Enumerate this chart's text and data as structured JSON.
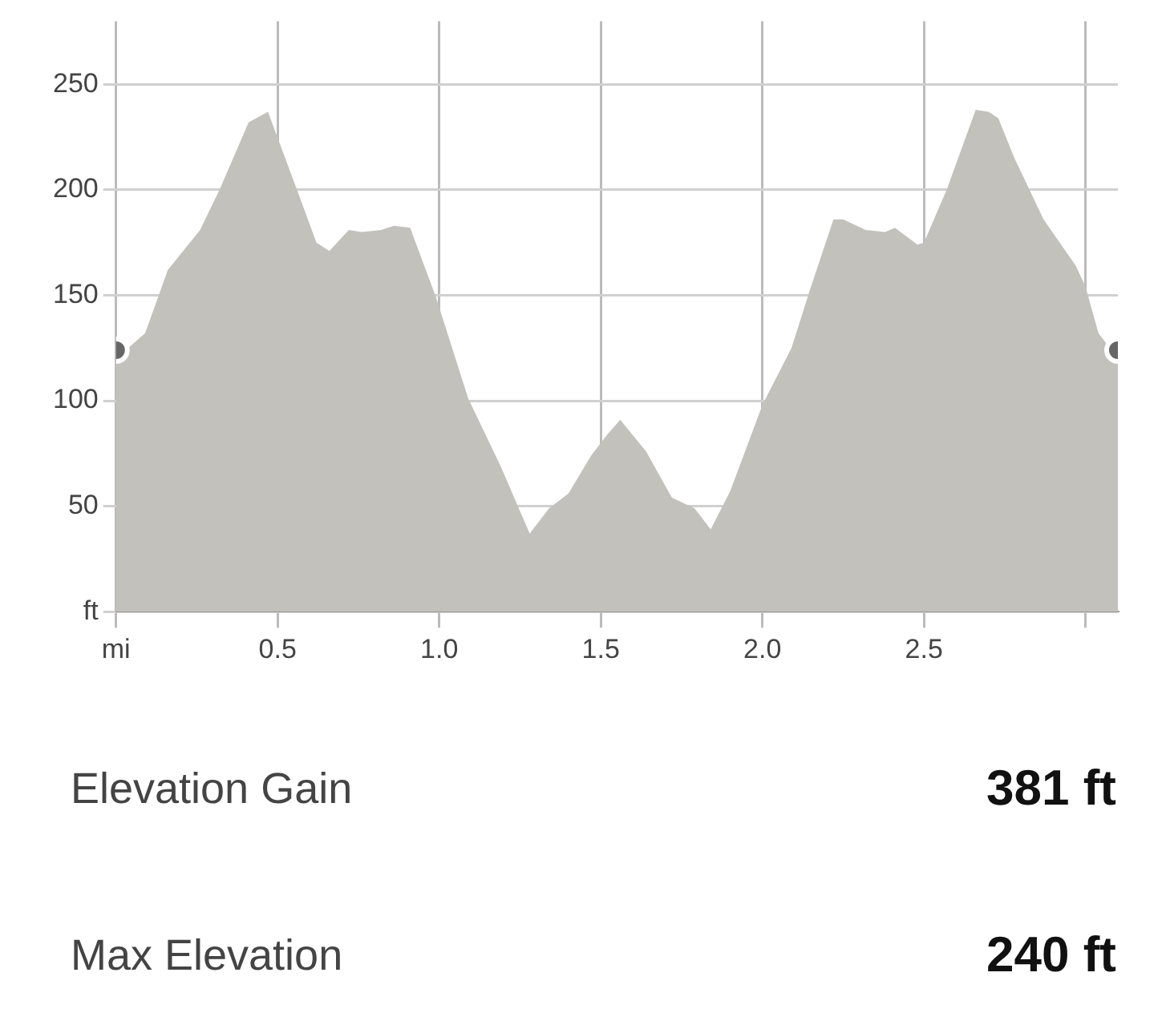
{
  "chart_data": {
    "type": "area",
    "series": [
      {
        "color": "#c2c1bb",
        "x": [
          0,
          0.09,
          0.16,
          0.26,
          0.32,
          0.41,
          0.47,
          0.56,
          0.62,
          0.66,
          0.72,
          0.76,
          0.82,
          0.86,
          0.91,
          0.99,
          1.09,
          1.19,
          1.28,
          1.34,
          1.4,
          1.47,
          1.52,
          1.56,
          1.64,
          1.72,
          1.79,
          1.84,
          1.9,
          2.0,
          2.09,
          2.15,
          2.22,
          2.25,
          2.32,
          2.38,
          2.41,
          2.48,
          2.5,
          2.57,
          2.66,
          2.7,
          2.73,
          2.78,
          2.87,
          2.97,
          3.0,
          3.04,
          3.09,
          3.1
        ],
        "values": [
          120,
          132,
          162,
          181,
          200,
          232,
          237,
          200,
          175,
          171,
          181,
          180,
          181,
          183,
          182,
          149,
          101,
          69,
          37,
          49,
          56,
          74,
          84,
          91,
          76,
          54,
          49,
          39,
          57,
          98,
          125,
          154,
          186,
          186,
          181,
          180,
          182,
          174,
          175,
          200,
          238,
          237,
          234,
          215,
          186,
          164,
          154,
          132,
          122,
          122
        ]
      },
      {
        "type": "scatter",
        "color": "#666666",
        "marker": "circle",
        "x": [
          0,
          3.1
        ],
        "values": [
          124,
          124
        ]
      }
    ],
    "xlim": [
      0,
      3.1
    ],
    "xticks": [
      {
        "value": 0,
        "label": "mi"
      },
      0.5,
      {
        "value": 1,
        "label": "1.0"
      },
      1.5,
      {
        "value": 2,
        "label": "2.0"
      },
      2.5,
      {
        "value": 3,
        "label": null
      }
    ],
    "ylim": [
      0,
      280
    ],
    "yticks": [
      {
        "value": 0,
        "label": "ft"
      },
      50,
      100,
      150,
      200,
      250
    ],
    "grid": true,
    "legend": false,
    "annotations": [
      "Elevation Gain",
      "381 ft",
      "Max Elevation",
      "240 ft"
    ]
  }
}
